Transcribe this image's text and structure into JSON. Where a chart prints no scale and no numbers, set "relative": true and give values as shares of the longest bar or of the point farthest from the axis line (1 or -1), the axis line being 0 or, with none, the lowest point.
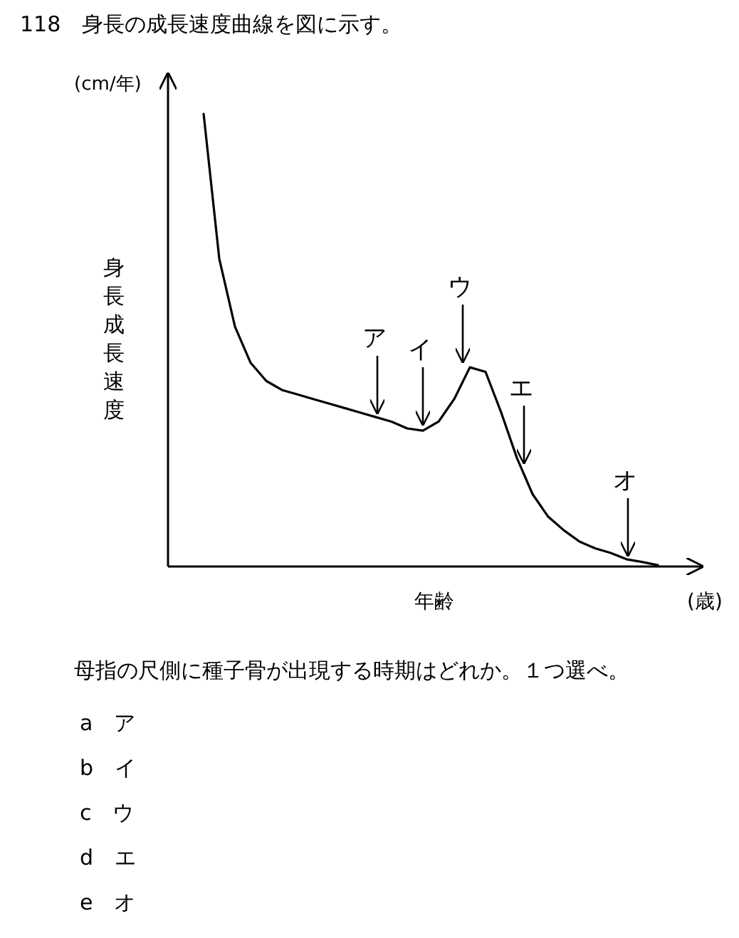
{
  "chart_data": {
    "type": "line",
    "relative": true,
    "title": "118　身長の成長速度曲線を図に示す。",
    "xlabel": "年齢",
    "ylabel": "身長成長速度",
    "categories": [
      null,
      null,
      null,
      null,
      null,
      null,
      null,
      null,
      null,
      null,
      null,
      null,
      null,
      null,
      null,
      null,
      null,
      null,
      null,
      null,
      null,
      null,
      null,
      null,
      null,
      null,
      null,
      null,
      null,
      null
    ],
    "series": [
      {
        "color": "#000000",
        "values": [
          1,
          0.68,
          0.53,
          0.45,
          0.41,
          0.39,
          0.38,
          0.37,
          0.36,
          0.35,
          0.34,
          0.33,
          0.32,
          0.305,
          0.3,
          0.32,
          0.37,
          0.44,
          0.43,
          0.34,
          0.24,
          0.16,
          0.11,
          0.08,
          0.055,
          0.04,
          0.03,
          0.016,
          0.01,
          0.003
        ]
      }
    ],
    "annotations": [
      "ア",
      "イ",
      "ウ",
      "エ",
      "オ",
      "(cm/年)",
      "(歳)",
      "母指の尺側に種子骨が出現する時期はどれか。１つ選べ。",
      "a　ア",
      "b　イ",
      "c　ウ",
      "d　エ",
      "e　オ"
    ]
  }
}
